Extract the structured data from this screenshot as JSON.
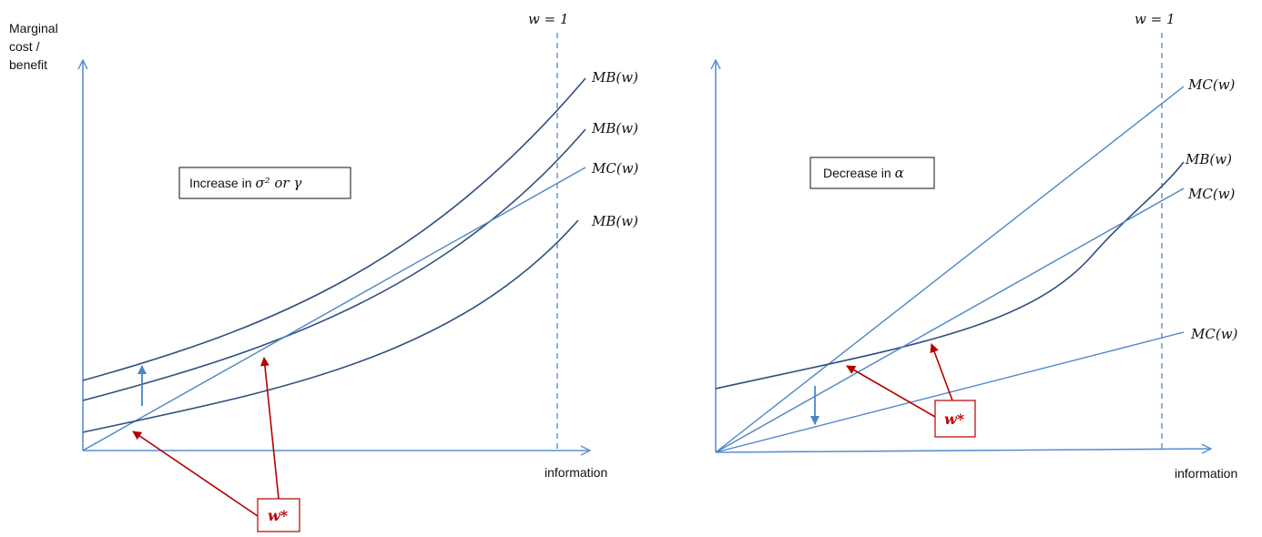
{
  "left_panel": {
    "y_axis_label_lines": [
      "Marginal",
      "cost /",
      "benefit"
    ],
    "x_axis_label": "information",
    "w_line_label": "w = 1",
    "box_label_prefix": "Increase in ",
    "box_label_math": "σ² or γ",
    "curve_labels": [
      "MB(w)",
      "MB(w)",
      "MC(w)",
      "MB(w)"
    ],
    "optimum_label": "w*"
  },
  "right_panel": {
    "x_axis_label": "information",
    "w_line_label": "w = 1",
    "box_label_prefix": "Decrease in ",
    "box_label_math": "α",
    "curve_labels": [
      "MC(w)",
      "MB(w)",
      "MC(w)",
      "MC(w)"
    ],
    "optimum_label": "w*"
  },
  "colors": {
    "axis": "#5b8fd1",
    "curve_dark": "#2f4f7f",
    "curve_light": "#4a86c8",
    "highlight": "#b40000"
  }
}
